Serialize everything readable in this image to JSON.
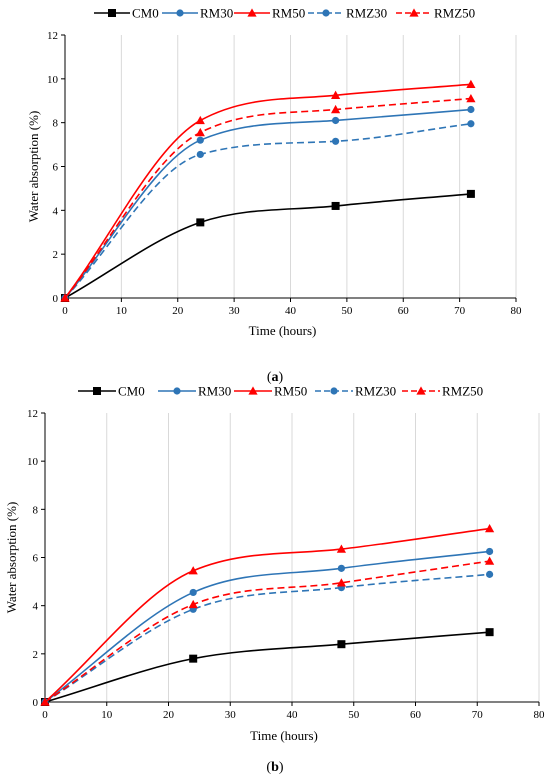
{
  "chart_data": [
    {
      "panel": "(a)",
      "type": "line",
      "xlabel": "Time (hours)",
      "ylabel": "Water absorption (%)",
      "xlim": [
        0,
        80
      ],
      "ylim": [
        0,
        12
      ],
      "xticks": [
        "0",
        "10",
        "20",
        "30",
        "40",
        "50",
        "60",
        "70",
        "80"
      ],
      "yticks": [
        "0",
        "2",
        "4",
        "6",
        "8",
        "10",
        "12"
      ],
      "grid": "vertical",
      "legend": "top",
      "x": [
        0,
        24,
        48,
        72
      ],
      "series": [
        {
          "name": "CM0",
          "color": "#000000",
          "marker": "square",
          "dashed": false,
          "values": [
            0,
            3.45,
            4.2,
            4.75
          ]
        },
        {
          "name": "RM30",
          "color": "#2e75b6",
          "marker": "circle",
          "dashed": false,
          "values": [
            0,
            7.2,
            8.1,
            8.6
          ]
        },
        {
          "name": "RM50",
          "color": "#ff0000",
          "marker": "triangle",
          "dashed": false,
          "values": [
            0,
            8.1,
            9.25,
            9.75
          ]
        },
        {
          "name": "RMZ30",
          "color": "#2e75b6",
          "marker": "circle",
          "dashed": true,
          "values": [
            0,
            6.55,
            7.15,
            7.95
          ]
        },
        {
          "name": "RMZ50",
          "color": "#ff0000",
          "marker": "triangle",
          "dashed": true,
          "values": [
            0,
            7.55,
            8.6,
            9.1
          ]
        }
      ]
    },
    {
      "panel": "(b)",
      "type": "line",
      "xlabel": "Time (hours)",
      "ylabel": "Water absorption (%)",
      "xlim": [
        0,
        80
      ],
      "ylim": [
        0,
        12
      ],
      "xticks": [
        "0",
        "10",
        "20",
        "30",
        "40",
        "50",
        "60",
        "70",
        "80"
      ],
      "yticks": [
        "0",
        "2",
        "4",
        "6",
        "8",
        "10",
        "12"
      ],
      "grid": "vertical",
      "legend": "top",
      "x": [
        0,
        24,
        48,
        72
      ],
      "series": [
        {
          "name": "CM0",
          "color": "#000000",
          "marker": "square",
          "dashed": false,
          "values": [
            0,
            1.8,
            2.4,
            2.9
          ]
        },
        {
          "name": "RM30",
          "color": "#2e75b6",
          "marker": "circle",
          "dashed": false,
          "values": [
            0,
            4.55,
            5.55,
            6.25
          ]
        },
        {
          "name": "RM50",
          "color": "#ff0000",
          "marker": "triangle",
          "dashed": false,
          "values": [
            0,
            5.45,
            6.35,
            7.2
          ]
        },
        {
          "name": "RMZ30",
          "color": "#2e75b6",
          "marker": "circle",
          "dashed": true,
          "values": [
            0,
            3.85,
            4.75,
            5.3
          ]
        },
        {
          "name": "RMZ50",
          "color": "#ff0000",
          "marker": "triangle",
          "dashed": true,
          "values": [
            0,
            4.05,
            4.95,
            5.85
          ]
        }
      ]
    }
  ]
}
